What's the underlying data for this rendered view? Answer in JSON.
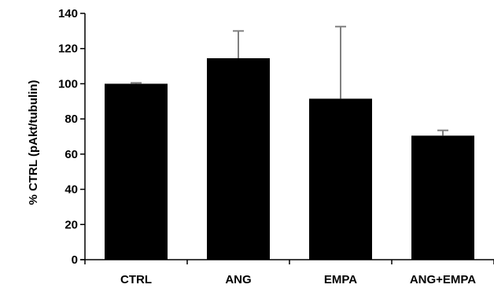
{
  "chart_data": {
    "type": "bar",
    "title": "",
    "xlabel": "",
    "ylabel": "% CTRL (pAkt/tubulin)",
    "ylim": [
      0,
      140
    ],
    "yticks": [
      0,
      20,
      40,
      60,
      80,
      100,
      120,
      140
    ],
    "categories": [
      "CTRL",
      "ANG",
      "EMPA",
      "ANG+EMPA"
    ],
    "series": [
      {
        "values": [
          100,
          114.5,
          91.5,
          70.5
        ],
        "error_upper": [
          0.5,
          15.5,
          41,
          3
        ]
      }
    ],
    "bar_color": "#000000",
    "error_bar_color": "#808080",
    "grid": false,
    "legend": "none"
  }
}
